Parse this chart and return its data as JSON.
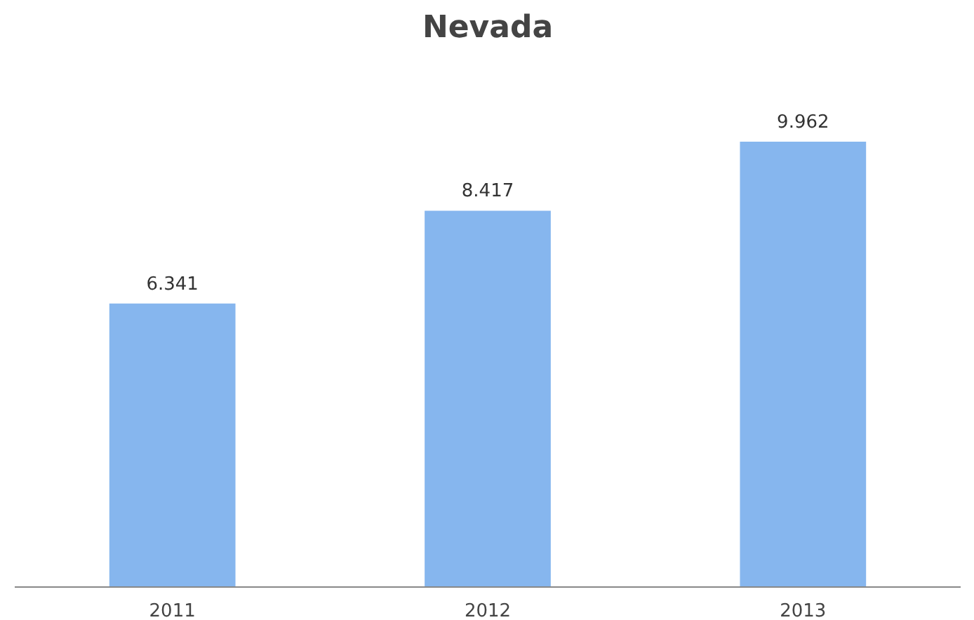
{
  "chart_data": {
    "type": "bar",
    "title": "Nevada",
    "categories": [
      "2011",
      "2012",
      "2013"
    ],
    "values": [
      6.341,
      8.417,
      9.962
    ],
    "color": "#86b6ee",
    "data_labels": true,
    "grid": false
  }
}
